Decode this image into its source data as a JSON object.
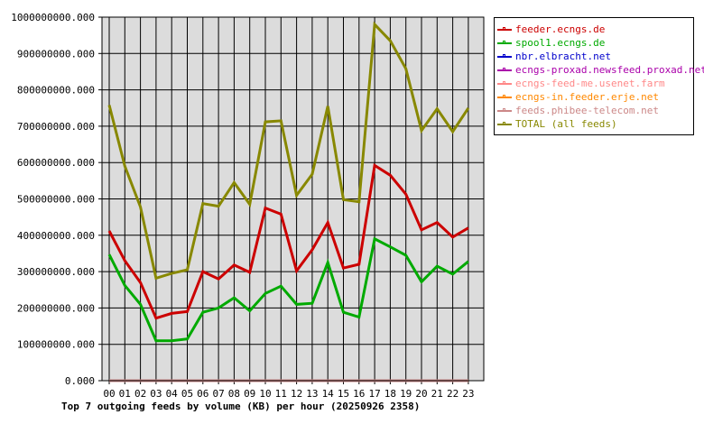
{
  "chart_data": {
    "type": "line",
    "title": "Top 7 outgoing feeds by volume (KB) per hour (20250926 2358)",
    "xlabel": "",
    "ylabel": "",
    "categories": [
      "00",
      "01",
      "02",
      "03",
      "04",
      "05",
      "06",
      "07",
      "08",
      "09",
      "10",
      "11",
      "12",
      "13",
      "14",
      "15",
      "16",
      "17",
      "18",
      "19",
      "20",
      "21",
      "22",
      "23"
    ],
    "ylim": [
      0,
      1000000000
    ],
    "yticks": [
      "0.000",
      "100000000.000",
      "200000000.000",
      "300000000.000",
      "400000000.000",
      "500000000.000",
      "600000000.000",
      "700000000.000",
      "800000000.000",
      "900000000.000",
      "1000000000.000"
    ],
    "grid": true,
    "legend_position": "right",
    "series": [
      {
        "name": "feeder.ecngs.de",
        "color": "#cc0000",
        "values": [
          412000000,
          330000000,
          270000000,
          172000000,
          185000000,
          190000000,
          300000000,
          280000000,
          318000000,
          298000000,
          475000000,
          458000000,
          302000000,
          360000000,
          435000000,
          310000000,
          320000000,
          592000000,
          565000000,
          513000000,
          415000000,
          435000000,
          395000000,
          420000000
        ]
      },
      {
        "name": "spool1.ecngs.de",
        "color": "#00aa00",
        "values": [
          347000000,
          262000000,
          210000000,
          110000000,
          110000000,
          115000000,
          188000000,
          200000000,
          228000000,
          192000000,
          240000000,
          260000000,
          210000000,
          213000000,
          325000000,
          188000000,
          175000000,
          390000000,
          368000000,
          345000000,
          272000000,
          315000000,
          293000000,
          328000000
        ]
      },
      {
        "name": "nbr.elbracht.net",
        "color": "#0000cc",
        "values": [
          0,
          0,
          0,
          0,
          0,
          0,
          0,
          0,
          0,
          0,
          0,
          0,
          0,
          0,
          0,
          0,
          0,
          0,
          0,
          0,
          0,
          0,
          0,
          0
        ]
      },
      {
        "name": "ecngs-proxad.newsfeed.proxad.net",
        "color": "#aa00aa",
        "values": [
          0,
          0,
          0,
          0,
          0,
          0,
          0,
          0,
          0,
          0,
          0,
          0,
          0,
          0,
          0,
          0,
          0,
          0,
          0,
          0,
          0,
          0,
          0,
          0
        ]
      },
      {
        "name": "ecngs-feed-me.usenet.farm",
        "color": "#ff8888",
        "values": [
          0,
          0,
          0,
          0,
          0,
          0,
          0,
          0,
          0,
          0,
          0,
          0,
          0,
          0,
          0,
          0,
          0,
          0,
          0,
          0,
          0,
          0,
          0,
          0
        ]
      },
      {
        "name": "ecngs-in.feeder.erje.net",
        "color": "#ff8800",
        "values": [
          0,
          0,
          0,
          0,
          0,
          0,
          0,
          0,
          0,
          0,
          0,
          0,
          0,
          0,
          0,
          0,
          0,
          0,
          0,
          0,
          0,
          0,
          0,
          0
        ]
      },
      {
        "name": "feeds.phibee-telecom.net",
        "color": "#cc8888",
        "values": [
          0,
          0,
          0,
          0,
          0,
          0,
          0,
          0,
          0,
          0,
          0,
          0,
          0,
          0,
          0,
          0,
          0,
          0,
          0,
          0,
          0,
          0,
          0,
          0
        ]
      },
      {
        "name": "TOTAL (all feeds)",
        "color": "#888800",
        "values": [
          758000000,
          590000000,
          478000000,
          282000000,
          295000000,
          305000000,
          487000000,
          480000000,
          545000000,
          485000000,
          712000000,
          715000000,
          510000000,
          568000000,
          755000000,
          498000000,
          492000000,
          980000000,
          935000000,
          858000000,
          688000000,
          748000000,
          685000000,
          750000000
        ]
      }
    ]
  }
}
